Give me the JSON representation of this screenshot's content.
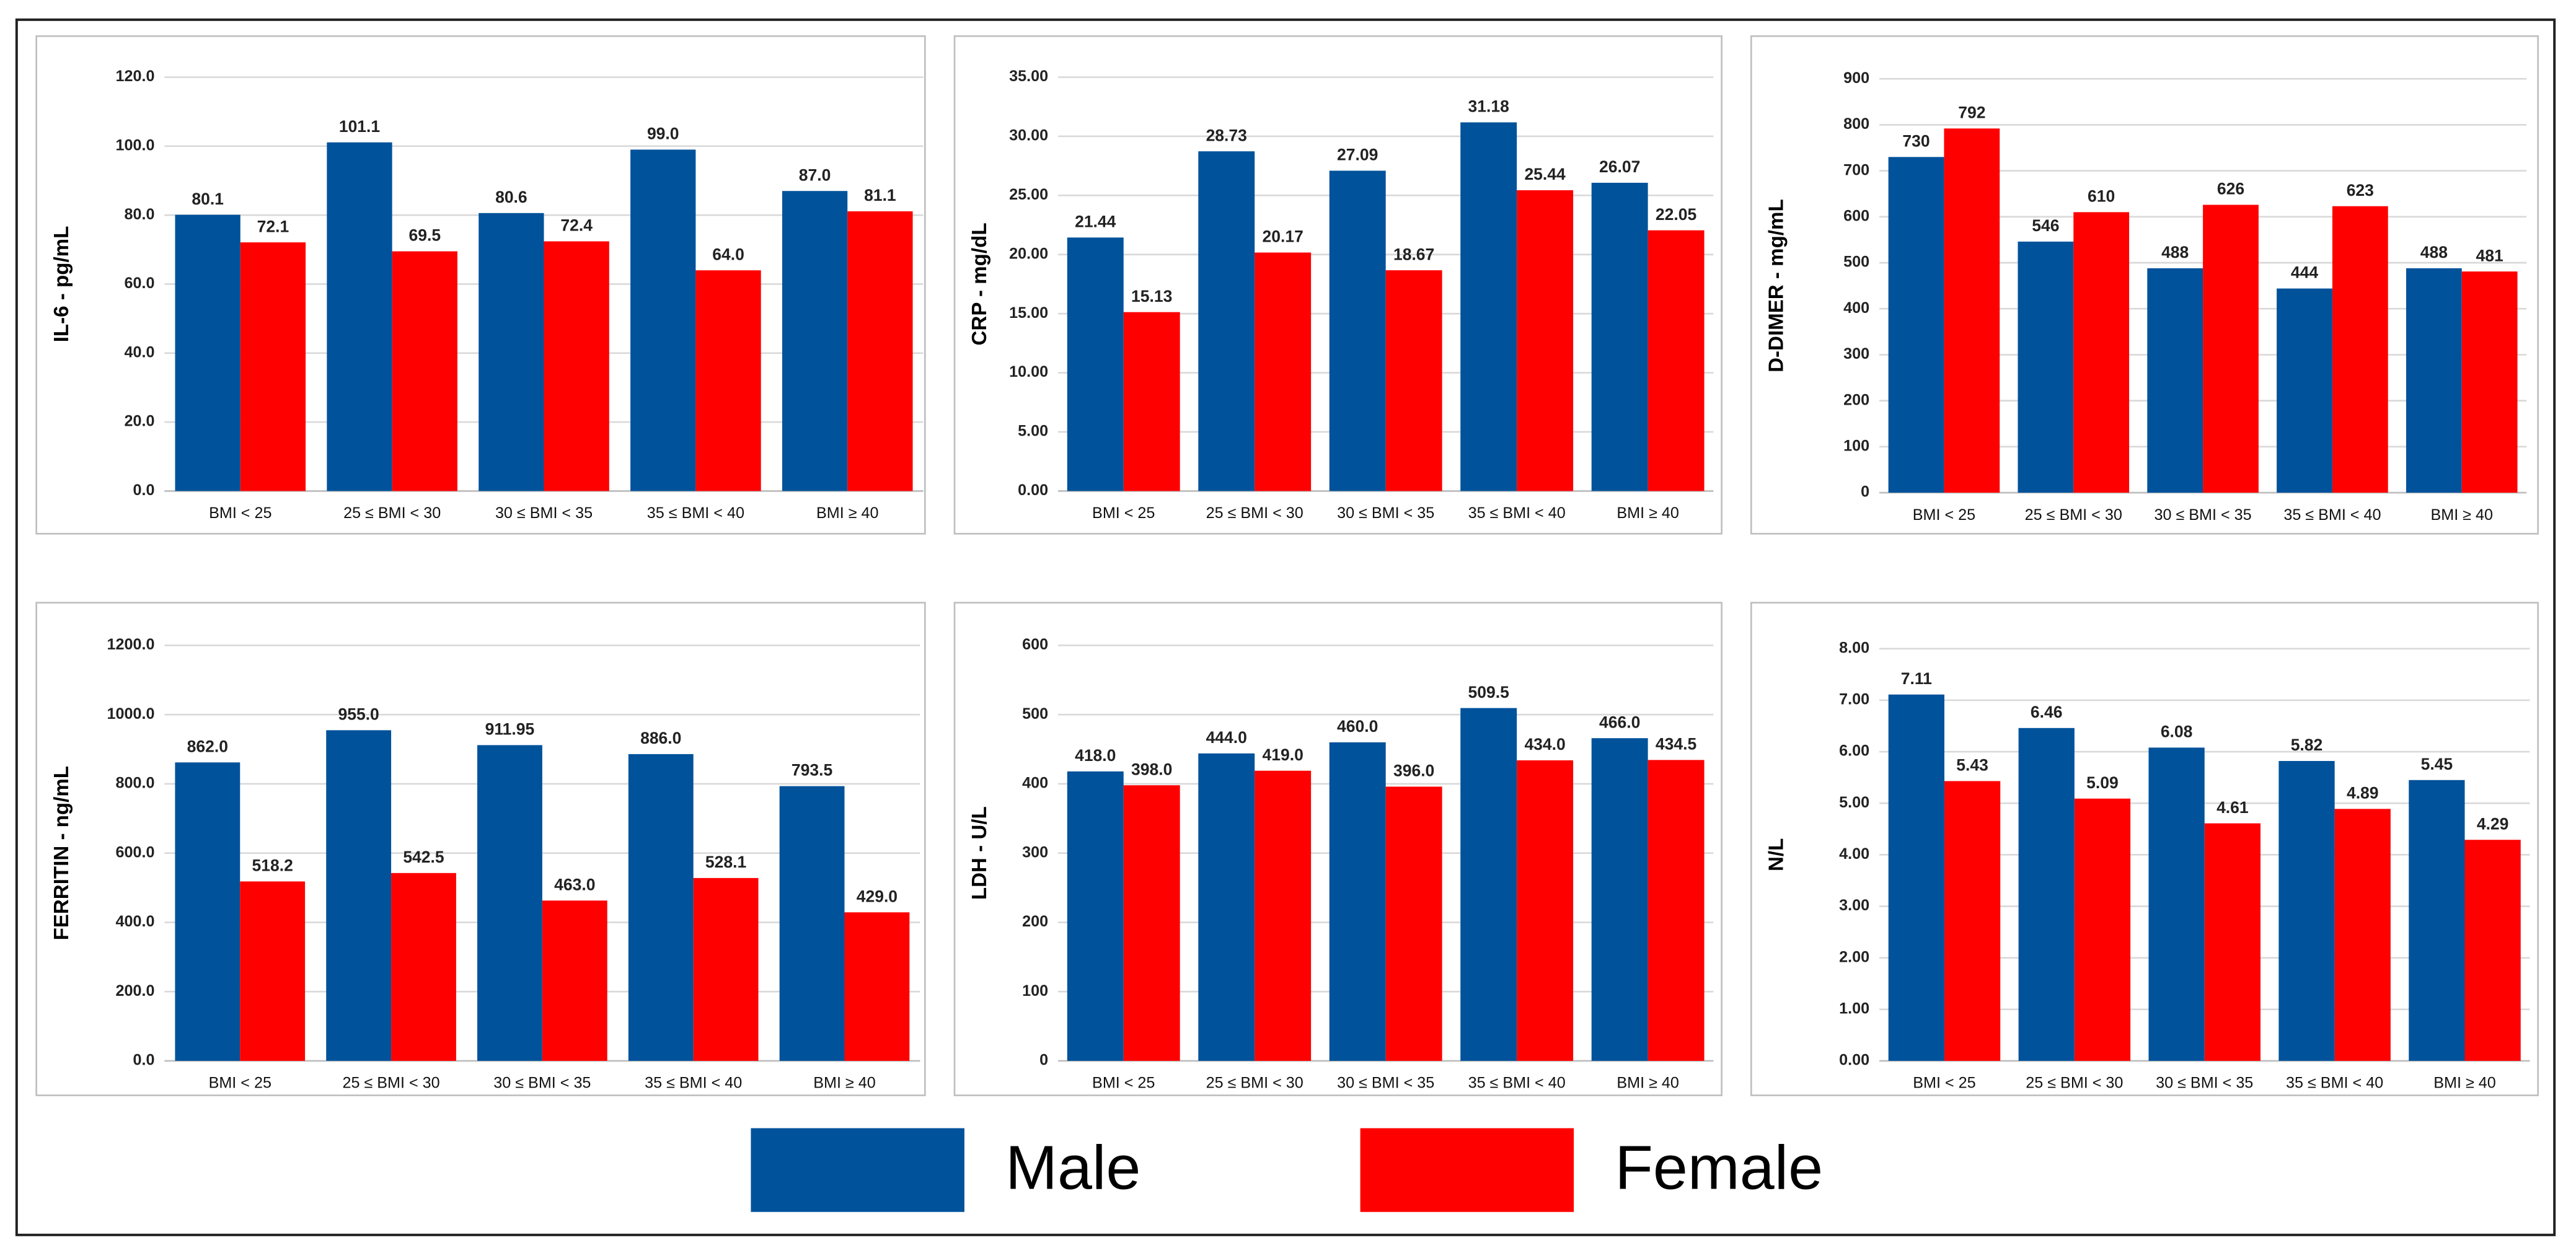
{
  "legend": [
    {
      "name": "Male",
      "color": "#00529b"
    },
    {
      "name": "Female",
      "color": "#ff0000"
    }
  ],
  "chart_data": [
    {
      "type": "bar",
      "y_label": "IL-6 - pg/mL",
      "categories": [
        "BMI < 25",
        "25 ≤ BMI < 30",
        "30 ≤ BMI < 35",
        "35 ≤ BMI < 40",
        "BMI ≥ 40"
      ],
      "series": [
        {
          "values": [
            80.1,
            101.1,
            80.6,
            99.0,
            87.0
          ],
          "value_labels": [
            "80.1",
            "101.1",
            "80.6",
            "99.0",
            "87.0"
          ]
        },
        {
          "values": [
            72.1,
            69.5,
            72.4,
            64.0,
            81.1
          ],
          "value_labels": [
            "72.1",
            "69.5",
            "72.4",
            "64.0",
            "81.1"
          ]
        }
      ],
      "ylim": [
        0,
        120
      ],
      "yticks": [
        {
          "value": 0,
          "label": "0.0"
        },
        {
          "value": 20,
          "label": "20.0"
        },
        {
          "value": 40,
          "label": "40.0"
        },
        {
          "value": 60,
          "label": "60.0"
        },
        {
          "value": 80,
          "label": "80.0"
        },
        {
          "value": 100,
          "label": "100.0"
        },
        {
          "value": 120,
          "label": "120.0"
        }
      ],
      "grid": true
    },
    {
      "type": "bar",
      "y_label": "CRP - mg/dL",
      "categories": [
        "BMI < 25",
        "25 ≤ BMI < 30",
        "30 ≤ BMI < 35",
        "35 ≤ BMI < 40",
        "BMI ≥ 40"
      ],
      "series": [
        {
          "values": [
            21.44,
            28.73,
            27.09,
            31.18,
            26.07
          ]
        },
        {
          "values": [
            15.13,
            20.17,
            18.67,
            25.44,
            22.05
          ]
        }
      ],
      "ylim": [
        0,
        35
      ],
      "yticks": [
        {
          "value": 0,
          "label": "0.00"
        },
        {
          "value": 5,
          "label": "5.00"
        },
        {
          "value": 10,
          "label": "10.00"
        },
        {
          "value": 15,
          "label": "15.00"
        },
        {
          "value": 20,
          "label": "20.00"
        },
        {
          "value": 25,
          "label": "25.00"
        },
        {
          "value": 30,
          "label": "30.00"
        },
        {
          "value": 35,
          "label": "35.00"
        }
      ],
      "grid": true
    },
    {
      "type": "bar",
      "y_label": "D-DIMER - mg/mL",
      "categories": [
        "BMI < 25",
        "25 ≤ BMI < 30",
        "30 ≤ BMI < 35",
        "35 ≤ BMI < 40",
        "BMI ≥ 40"
      ],
      "series": [
        {
          "values": [
            730,
            546,
            488,
            444,
            488
          ]
        },
        {
          "values": [
            792,
            610,
            626,
            623,
            481
          ]
        }
      ],
      "ylim": [
        0,
        900
      ],
      "yticks": [
        0,
        100,
        200,
        300,
        400,
        500,
        600,
        700,
        800,
        900
      ],
      "grid": true
    },
    {
      "type": "bar",
      "y_label": "FERRITIN - ng/mL",
      "categories": [
        "BMI < 25",
        "25 ≤ BMI < 30",
        "30 ≤ BMI < 35",
        "35 ≤ BMI < 40",
        "BMI ≥ 40"
      ],
      "series": [
        {
          "values": [
            862.0,
            955.0,
            911.95,
            886.0,
            793.5
          ],
          "value_labels": [
            "862.0",
            "955.0",
            "911.95",
            "886.0",
            "793.5"
          ]
        },
        {
          "values": [
            518.2,
            542.5,
            463.0,
            528.1,
            429.0
          ],
          "value_labels": [
            "518.2",
            "542.5",
            "463.0",
            "528.1",
            "429.0"
          ]
        }
      ],
      "ylim": [
        0,
        1200
      ],
      "yticks": [
        {
          "value": 0,
          "label": "0.0"
        },
        {
          "value": 200,
          "label": "200.0"
        },
        {
          "value": 400,
          "label": "400.0"
        },
        {
          "value": 600,
          "label": "600.0"
        },
        {
          "value": 800,
          "label": "800.0"
        },
        {
          "value": 1000,
          "label": "1000.0"
        },
        {
          "value": 1200,
          "label": "1200.0"
        }
      ],
      "grid": true
    },
    {
      "type": "bar",
      "y_label": "LDH - U/L",
      "categories": [
        "BMI < 25",
        "25 ≤ BMI < 30",
        "30 ≤ BMI < 35",
        "35 ≤ BMI < 40",
        "BMI ≥ 40"
      ],
      "series": [
        {
          "values": [
            418.0,
            444.0,
            460.0,
            509.5,
            466.0
          ],
          "value_labels": [
            "418.0",
            "444.0",
            "460.0",
            "509.5",
            "466.0"
          ]
        },
        {
          "values": [
            398.0,
            419.0,
            396.0,
            434.0,
            434.5
          ],
          "value_labels": [
            "398.0",
            "419.0",
            "396.0",
            "434.0",
            "434.5"
          ]
        }
      ],
      "ylim": [
        0,
        600
      ],
      "yticks": [
        0,
        100,
        200,
        300,
        400,
        500,
        600
      ],
      "grid": true
    },
    {
      "type": "bar",
      "y_label": "N/L",
      "categories": [
        "BMI < 25",
        "25 ≤ BMI < 30",
        "30 ≤ BMI < 35",
        "35 ≤ BMI < 40",
        "BMI ≥ 40"
      ],
      "series": [
        {
          "values": [
            7.11,
            6.46,
            6.08,
            5.82,
            5.45
          ]
        },
        {
          "values": [
            5.43,
            5.09,
            4.61,
            4.89,
            4.29
          ]
        }
      ],
      "ylim": [
        0,
        8
      ],
      "yticks": [
        {
          "value": 0,
          "label": "0.00"
        },
        {
          "value": 1,
          "label": "1.00"
        },
        {
          "value": 2,
          "label": "2.00"
        },
        {
          "value": 3,
          "label": "3.00"
        },
        {
          "value": 4,
          "label": "4.00"
        },
        {
          "value": 5,
          "label": "5.00"
        },
        {
          "value": 6,
          "label": "6.00"
        },
        {
          "value": 7,
          "label": "7.00"
        },
        {
          "value": 8,
          "label": "8.00"
        }
      ],
      "grid": true
    }
  ]
}
